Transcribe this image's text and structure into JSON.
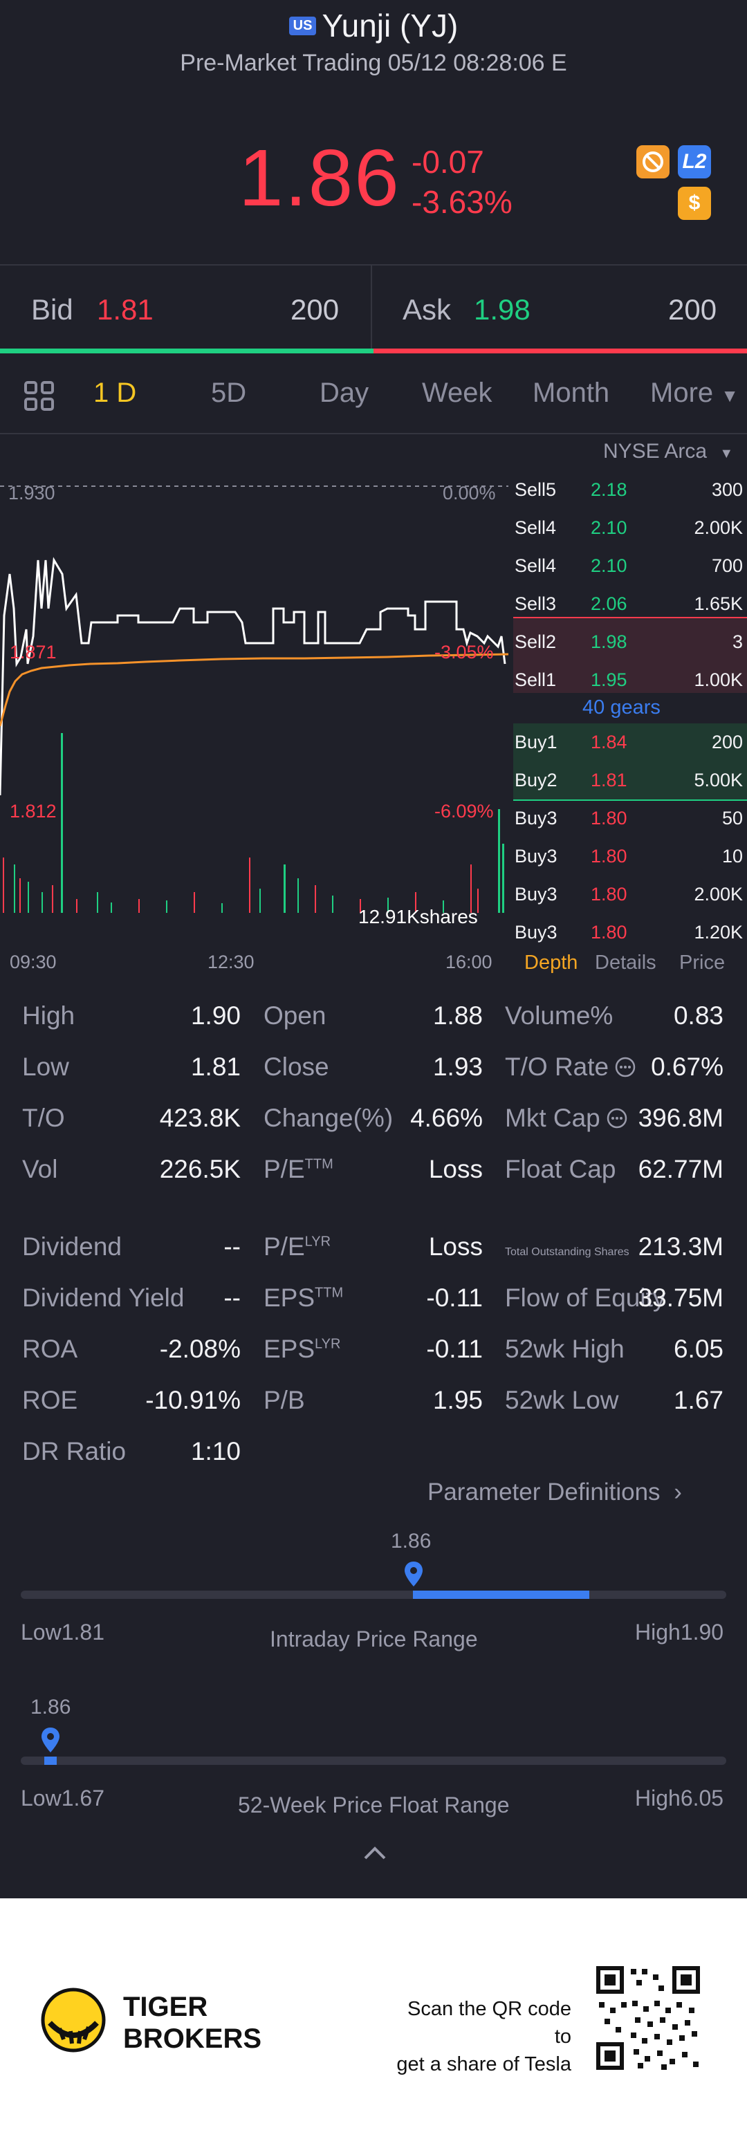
{
  "header": {
    "flag": "US",
    "title": "Yunji (YJ)",
    "subtitle": "Pre-Market Trading 05/12 08:28:06 E"
  },
  "quote": {
    "price": "1.86",
    "change": "-0.07",
    "change_pct": "-3.63%",
    "badge_l2": "L2",
    "badge_dollar": "$"
  },
  "bidask": {
    "bid_label": "Bid",
    "bid_price": "1.81",
    "bid_qty": "200",
    "ask_label": "Ask",
    "ask_price": "1.98",
    "ask_qty": "200"
  },
  "tabs": [
    "1 D",
    "5D",
    "Day",
    "Week",
    "Month",
    "More"
  ],
  "chart": {
    "exchange": "NYSE Arca",
    "y_top": "1.930",
    "y_mid": "1.871",
    "y_low": "1.812",
    "pct_top": "0.00%",
    "pct_mid": "-3.05%",
    "pct_low": "-6.09%",
    "vol_label": "12.91Kshares",
    "x_labels": [
      "09:30",
      "12:30",
      "16:00"
    ]
  },
  "chart_data": {
    "type": "line",
    "x": [
      "09:30",
      "12:30",
      "16:00"
    ],
    "ylim": [
      1.812,
      1.93
    ],
    "series": []
  },
  "orderbook": {
    "sells": [
      {
        "label": "Sell5",
        "price": "2.18",
        "qty": "300"
      },
      {
        "label": "Sell4",
        "price": "2.10",
        "qty": "2.00K"
      },
      {
        "label": "Sell4",
        "price": "2.10",
        "qty": "700"
      },
      {
        "label": "Sell3",
        "price": "2.06",
        "qty": "1.65K"
      },
      {
        "label": "Sell2",
        "price": "1.98",
        "qty": "3"
      },
      {
        "label": "Sell1",
        "price": "1.95",
        "qty": "1.00K"
      }
    ],
    "gears": "40 gears",
    "buys": [
      {
        "label": "Buy1",
        "price": "1.84",
        "qty": "200"
      },
      {
        "label": "Buy2",
        "price": "1.81",
        "qty": "5.00K"
      },
      {
        "label": "Buy3",
        "price": "1.80",
        "qty": "50"
      },
      {
        "label": "Buy3",
        "price": "1.80",
        "qty": "10"
      },
      {
        "label": "Buy3",
        "price": "1.80",
        "qty": "2.00K"
      },
      {
        "label": "Buy3",
        "price": "1.80",
        "qty": "1.20K"
      }
    ],
    "tabs": [
      "Depth",
      "Details",
      "Price"
    ]
  },
  "stats": {
    "c1": [
      {
        "label": "High",
        "value": "1.90"
      },
      {
        "label": "Low",
        "value": "1.81"
      },
      {
        "label": "T/O",
        "value": "423.8K"
      },
      {
        "label": "Vol",
        "value": "226.5K"
      }
    ],
    "c2": [
      {
        "label": "Open",
        "value": "1.88"
      },
      {
        "label": "Close",
        "value": "1.93"
      },
      {
        "label": "Change(%)",
        "value": "4.66%"
      },
      {
        "label": "P/E",
        "sup": "TTM",
        "value": "Loss"
      }
    ],
    "c3": [
      {
        "label": "Volume%",
        "value": "0.83"
      },
      {
        "label": "T/O Rate",
        "value": "0.67%"
      },
      {
        "label": "Mkt Cap",
        "value": "396.8M"
      },
      {
        "label": "Float Cap",
        "value": "62.77M"
      }
    ],
    "d1": [
      {
        "label": "Dividend",
        "value": "--"
      },
      {
        "label": "Dividend Yield",
        "value": "--"
      },
      {
        "label": "ROA",
        "value": "-2.08%"
      },
      {
        "label": "ROE",
        "value": "-10.91%"
      },
      {
        "label": "DR Ratio",
        "value": "1:10"
      }
    ],
    "d2": [
      {
        "label": "P/E",
        "sup": "LYR",
        "value": "Loss"
      },
      {
        "label": "EPS",
        "sup": "TTM",
        "value": "-0.11"
      },
      {
        "label": "EPS",
        "sup": "LYR",
        "value": "-0.11"
      },
      {
        "label": "P/B",
        "value": "1.95"
      }
    ],
    "d3": [
      {
        "label": "Total Outstanding Shares",
        "value": "213.3M"
      },
      {
        "label": "Flow of Equity",
        "value": "33.75M"
      },
      {
        "label": "52wk High",
        "value": "6.05"
      },
      {
        "label": "52wk Low",
        "value": "1.67"
      }
    ]
  },
  "param_link": "Parameter Definitions",
  "intraday": {
    "marker": "1.86",
    "low": "Low1.81",
    "high": "High1.90",
    "title": "Intraday Price Range",
    "position_fraction": 0.556
  },
  "week52": {
    "marker": "1.86",
    "low": "Low1.67",
    "high": "High6.05",
    "title": "52-Week Price Float Range",
    "position_fraction": 0.043
  },
  "footer": {
    "brand_line1": "TIGER",
    "brand_line2": "BROKERS",
    "promo_line1": "Scan the QR code to",
    "promo_line2": "get a share of Tesla"
  }
}
